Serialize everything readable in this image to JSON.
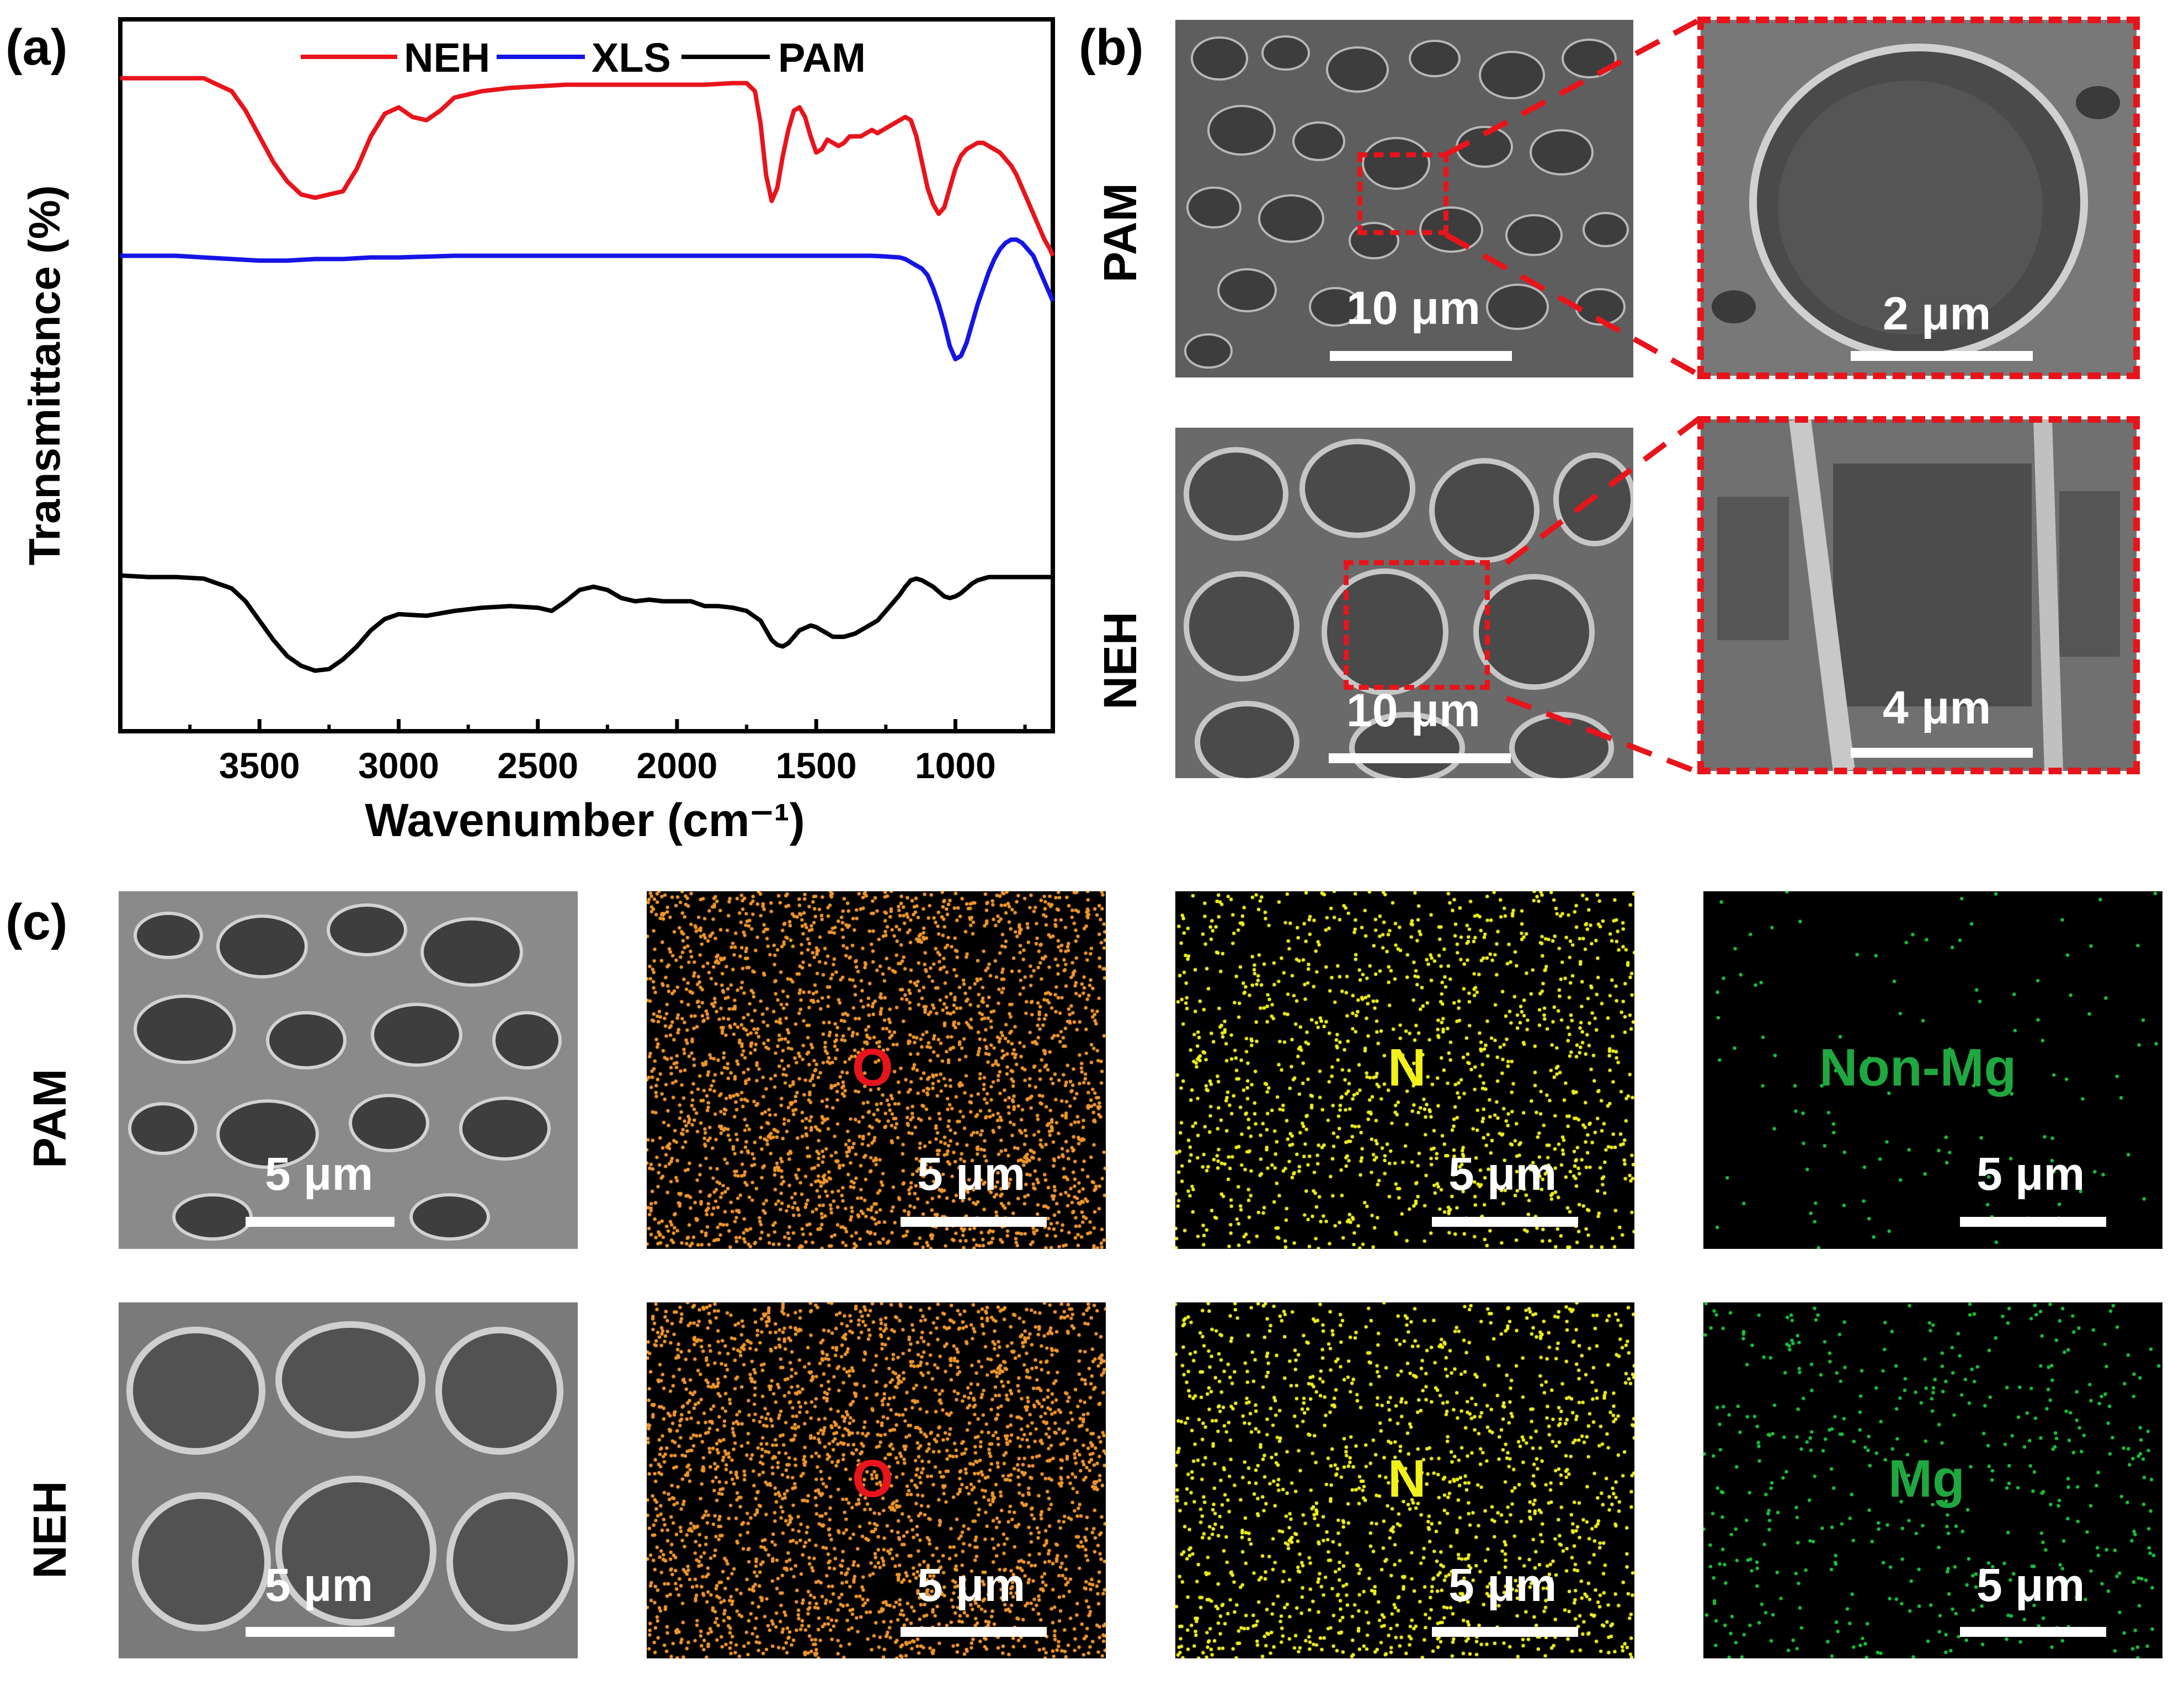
{
  "panels": {
    "a": {
      "label": "(a)"
    },
    "b": {
      "label": "(b)"
    },
    "c": {
      "label": "(c)"
    }
  },
  "chart_data": {
    "type": "line",
    "title": "",
    "xlabel": "Wavenumber (cm⁻¹)",
    "ylabel": "Transmittance (%)",
    "xlim": [
      4000,
      650
    ],
    "x_reversed": true,
    "yticks_shown": false,
    "xticks": [
      3500,
      3000,
      2500,
      2000,
      1500,
      1000
    ],
    "xtick_labels": [
      "3500",
      "3000",
      "2500",
      "2000",
      "1500",
      "1000"
    ],
    "legend": {
      "placement": "top-center",
      "entries": [
        "NEH",
        "XLS",
        "PAM"
      ]
    },
    "grid": false,
    "series": [
      {
        "name": "NEH",
        "color": "#e8141c",
        "x": [
          4000,
          3900,
          3800,
          3700,
          3600,
          3550,
          3500,
          3450,
          3400,
          3350,
          3300,
          3250,
          3200,
          3150,
          3100,
          3050,
          3000,
          2950,
          2900,
          2850,
          2800,
          2700,
          2600,
          2500,
          2400,
          2300,
          2200,
          2100,
          2000,
          1900,
          1800,
          1750,
          1720,
          1700,
          1680,
          1660,
          1640,
          1620,
          1600,
          1580,
          1560,
          1540,
          1520,
          1500,
          1480,
          1460,
          1440,
          1420,
          1400,
          1380,
          1360,
          1340,
          1320,
          1300,
          1280,
          1260,
          1240,
          1220,
          1200,
          1180,
          1160,
          1140,
          1120,
          1100,
          1080,
          1060,
          1040,
          1020,
          1000,
          980,
          960,
          940,
          920,
          900,
          880,
          860,
          840,
          820,
          800,
          780,
          760,
          740,
          720,
          700,
          680,
          660,
          650
        ],
        "y": [
          0.92,
          0.92,
          0.92,
          0.92,
          0.88,
          0.82,
          0.74,
          0.66,
          0.6,
          0.56,
          0.55,
          0.56,
          0.57,
          0.64,
          0.74,
          0.81,
          0.83,
          0.8,
          0.79,
          0.82,
          0.86,
          0.88,
          0.89,
          0.895,
          0.9,
          0.9,
          0.9,
          0.9,
          0.9,
          0.9,
          0.905,
          0.905,
          0.88,
          0.78,
          0.62,
          0.54,
          0.58,
          0.68,
          0.76,
          0.82,
          0.83,
          0.8,
          0.74,
          0.69,
          0.7,
          0.73,
          0.72,
          0.71,
          0.72,
          0.74,
          0.74,
          0.74,
          0.75,
          0.76,
          0.75,
          0.76,
          0.77,
          0.78,
          0.79,
          0.8,
          0.79,
          0.74,
          0.66,
          0.58,
          0.53,
          0.5,
          0.52,
          0.58,
          0.64,
          0.68,
          0.7,
          0.71,
          0.72,
          0.72,
          0.71,
          0.7,
          0.69,
          0.67,
          0.65,
          0.62,
          0.58,
          0.54,
          0.5,
          0.46,
          0.42,
          0.39,
          0.37
        ]
      },
      {
        "name": "XLS",
        "color": "#1515e6",
        "x": [
          4000,
          3900,
          3800,
          3700,
          3600,
          3500,
          3400,
          3300,
          3200,
          3100,
          3000,
          2800,
          2600,
          2400,
          2200,
          2000,
          1800,
          1600,
          1400,
          1300,
          1250,
          1200,
          1180,
          1160,
          1140,
          1120,
          1100,
          1080,
          1060,
          1040,
          1020,
          1000,
          980,
          960,
          940,
          920,
          900,
          880,
          860,
          840,
          820,
          800,
          780,
          760,
          740,
          720,
          700,
          680,
          660,
          650
        ],
        "y": [
          0.37,
          0.37,
          0.37,
          0.365,
          0.36,
          0.355,
          0.355,
          0.36,
          0.36,
          0.365,
          0.365,
          0.37,
          0.37,
          0.37,
          0.37,
          0.37,
          0.37,
          0.37,
          0.37,
          0.37,
          0.368,
          0.365,
          0.36,
          0.35,
          0.34,
          0.33,
          0.31,
          0.27,
          0.22,
          0.16,
          0.09,
          0.05,
          0.06,
          0.1,
          0.16,
          0.22,
          0.27,
          0.32,
          0.36,
          0.39,
          0.41,
          0.42,
          0.42,
          0.41,
          0.39,
          0.37,
          0.33,
          0.29,
          0.25,
          0.23
        ]
      },
      {
        "name": "PAM",
        "color": "#000000",
        "x": [
          4000,
          3900,
          3800,
          3700,
          3600,
          3550,
          3500,
          3450,
          3400,
          3350,
          3300,
          3250,
          3200,
          3150,
          3100,
          3050,
          3000,
          2900,
          2800,
          2700,
          2600,
          2500,
          2450,
          2400,
          2350,
          2300,
          2250,
          2200,
          2150,
          2100,
          2050,
          2000,
          1950,
          1900,
          1850,
          1800,
          1750,
          1700,
          1680,
          1660,
          1640,
          1620,
          1600,
          1560,
          1520,
          1500,
          1480,
          1460,
          1440,
          1400,
          1360,
          1320,
          1280,
          1240,
          1200,
          1180,
          1160,
          1140,
          1120,
          1100,
          1080,
          1060,
          1040,
          1020,
          1000,
          980,
          960,
          940,
          920,
          900,
          880,
          860,
          840,
          820,
          800,
          780,
          760,
          740,
          720,
          700,
          680,
          660,
          650
        ],
        "y": [
          -0.62,
          -0.625,
          -0.625,
          -0.63,
          -0.66,
          -0.7,
          -0.76,
          -0.82,
          -0.87,
          -0.9,
          -0.915,
          -0.91,
          -0.88,
          -0.84,
          -0.79,
          -0.755,
          -0.74,
          -0.745,
          -0.73,
          -0.72,
          -0.715,
          -0.72,
          -0.73,
          -0.7,
          -0.665,
          -0.655,
          -0.665,
          -0.69,
          -0.7,
          -0.695,
          -0.7,
          -0.7,
          -0.7,
          -0.715,
          -0.715,
          -0.72,
          -0.73,
          -0.76,
          -0.79,
          -0.82,
          -0.835,
          -0.84,
          -0.83,
          -0.79,
          -0.775,
          -0.78,
          -0.79,
          -0.8,
          -0.81,
          -0.81,
          -0.8,
          -0.78,
          -0.76,
          -0.72,
          -0.68,
          -0.655,
          -0.635,
          -0.63,
          -0.635,
          -0.645,
          -0.655,
          -0.67,
          -0.685,
          -0.69,
          -0.685,
          -0.675,
          -0.66,
          -0.645,
          -0.635,
          -0.63,
          -0.625,
          -0.625,
          -0.625,
          -0.625,
          -0.625,
          -0.625,
          -0.625,
          -0.625,
          -0.625,
          -0.625,
          -0.625,
          -0.625,
          -0.625
        ]
      }
    ]
  },
  "panel_b": {
    "row_labels": [
      "PAM",
      "NEH"
    ],
    "scale_labels": {
      "pam_left": "10 μm",
      "pam_zoom": "2 μm",
      "neh_left": "10 μm",
      "neh_zoom": "4 μm"
    }
  },
  "panel_c": {
    "row_labels": [
      "PAM",
      "NEH"
    ],
    "scale_label": "5 μm",
    "maps": {
      "pam": {
        "o": "O",
        "n": "N",
        "mg": "Non-Mg"
      },
      "neh": {
        "o": "O",
        "n": "N",
        "mg": "Mg"
      }
    },
    "colors": {
      "o_label": "#e8141c",
      "o_dots": "#f0962a",
      "n": "#f2f21a",
      "mg": "#19c23a",
      "mg_label": "#1fa83f"
    }
  }
}
